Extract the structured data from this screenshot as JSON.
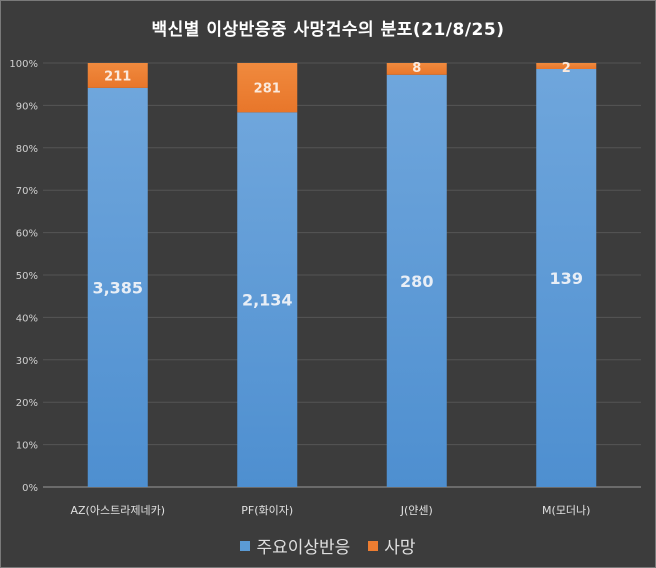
{
  "chart_data": {
    "type": "bar",
    "stacked": "percent",
    "title": "백신별 이상반응중 사망건수의 분포(21/8/25)",
    "categories": [
      "AZ(아스트라제네카)",
      "PF(화이자)",
      "J(얀센)",
      "M(모더나)"
    ],
    "series": [
      {
        "name": "주요이상반응",
        "values": [
          3385,
          2134,
          280,
          139
        ],
        "labels": [
          "3,385",
          "2,134",
          "280",
          "139"
        ],
        "color": "#5b9bd5"
      },
      {
        "name": "사망",
        "values": [
          211,
          281,
          8,
          2
        ],
        "labels": [
          "211",
          "281",
          "8",
          "2"
        ],
        "color": "#ed7d31"
      }
    ],
    "yticks": [
      "0%",
      "10%",
      "20%",
      "30%",
      "40%",
      "50%",
      "60%",
      "70%",
      "80%",
      "90%",
      "100%"
    ],
    "ylim": [
      0,
      100
    ],
    "grid": true,
    "legend": "bottom"
  }
}
